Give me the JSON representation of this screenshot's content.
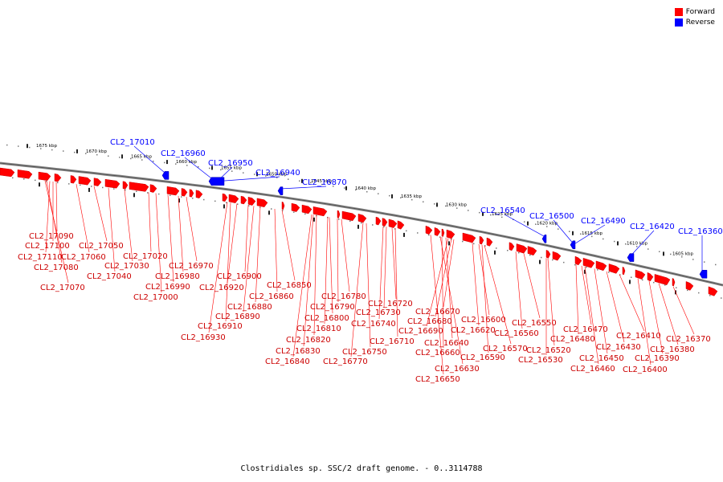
{
  "caption": "Clostridiales sp. SSC/2 draft genome. - 0..3114788",
  "legend": [
    {
      "label": "Forward",
      "color": "#ff0000"
    },
    {
      "label": "Reverse",
      "color": "#0000ff"
    }
  ],
  "scale_ticks": [
    "1675 kbp",
    "1670 kbp",
    "1665 kbp",
    "1660 kbp",
    "1655 kbp",
    "1650 kbp",
    "1645 kbp",
    "1640 kbp",
    "1635 kbp",
    "1630 kbp",
    "1625 kbp",
    "1620 kbp",
    "1615 kbp",
    "1610 kbp",
    "1605 kbp"
  ],
  "reverse_labels": [
    "CL2_17010",
    "CL2_16960",
    "CL2_16950",
    "CL2_16940",
    "CL2_16870",
    "CL2_16540",
    "CL2_16500",
    "CL2_16490",
    "CL2_16420",
    "CL2_16360"
  ],
  "forward_labels": [
    "CL2_17090",
    "CL2_17100",
    "CL2_17110",
    "CL2_17080",
    "CL2_17070",
    "CL2_17060",
    "CL2_17050",
    "CL2_17040",
    "CL2_17030",
    "CL2_17020",
    "CL2_17000",
    "CL2_16990",
    "CL2_16980",
    "CL2_16970",
    "CL2_16930",
    "CL2_16910",
    "CL2_16920",
    "CL2_16900",
    "CL2_16890",
    "CL2_16880",
    "CL2_16860",
    "CL2_16850",
    "CL2_16840",
    "CL2_16830",
    "CL2_16820",
    "CL2_16810",
    "CL2_16800",
    "CL2_16790",
    "CL2_16780",
    "CL2_16770",
    "CL2_16750",
    "CL2_16740",
    "CL2_16730",
    "CL2_16720",
    "CL2_16710",
    "CL2_16650",
    "CL2_16630",
    "CL2_16660",
    "CL2_16640",
    "CL2_16690",
    "CL2_16680",
    "CL2_16670",
    "CL2_16620",
    "CL2_16600",
    "CL2_16590",
    "CL2_16570",
    "CL2_16560",
    "CL2_16550",
    "CL2_16530",
    "CL2_16520",
    "CL2_16480",
    "CL2_16470",
    "CL2_16460",
    "CL2_16450",
    "CL2_16430",
    "CL2_16410",
    "CL2_16400",
    "CL2_16390",
    "CL2_16380",
    "CL2_16370"
  ]
}
